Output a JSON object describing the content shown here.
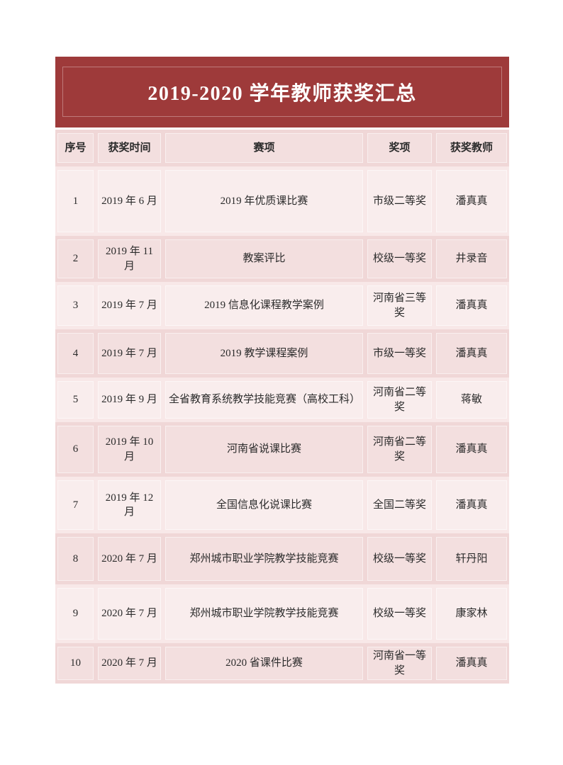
{
  "title": "2019-2020 学年教师获奖汇总",
  "columns": [
    {
      "key": "seq",
      "label": "序号"
    },
    {
      "key": "date",
      "label": "获奖时间"
    },
    {
      "key": "event",
      "label": "赛项"
    },
    {
      "key": "award",
      "label": "奖项"
    },
    {
      "key": "teacher",
      "label": "获奖教师"
    }
  ],
  "rows": [
    {
      "seq": "1",
      "date": "2019 年 6 月",
      "event": "2019 年优质课比赛",
      "award": "市级二等奖",
      "teacher": "潘真真"
    },
    {
      "seq": "2",
      "date": "2019 年 11 月",
      "event": "教案评比",
      "award": "校级一等奖",
      "teacher": "井录音"
    },
    {
      "seq": "3",
      "date": "2019 年 7 月",
      "event": "2019 信息化课程教学案例",
      "award": "河南省三等奖",
      "teacher": "潘真真"
    },
    {
      "seq": "4",
      "date": "2019 年 7 月",
      "event": "2019 教学课程案例",
      "award": "市级一等奖",
      "teacher": "潘真真"
    },
    {
      "seq": "5",
      "date": "2019 年 9 月",
      "event": "全省教育系统教学技能竞赛（高校工科）",
      "award": "河南省二等奖",
      "teacher": "蒋敏"
    },
    {
      "seq": "6",
      "date": "2019 年 10 月",
      "event": "河南省说课比赛",
      "award": "河南省二等奖",
      "teacher": "潘真真"
    },
    {
      "seq": "7",
      "date": "2019 年 12 月",
      "event": "全国信息化说课比赛",
      "award": "全国二等奖",
      "teacher": "潘真真"
    },
    {
      "seq": "8",
      "date": "2020 年 7 月",
      "event": "郑州城市职业学院教学技能竞赛",
      "award": "校级一等奖",
      "teacher": "轩丹阳"
    },
    {
      "seq": "9",
      "date": "2020 年 7 月",
      "event": "郑州城市职业学院教学技能竞赛",
      "award": "校级一等奖",
      "teacher": "康家林"
    },
    {
      "seq": "10",
      "date": "2020 年 7 月",
      "event": "2020 省课件比赛",
      "award": "河南省一等奖",
      "teacher": "潘真真"
    }
  ],
  "colors": {
    "banner_bg": "#9e3a3a",
    "banner_text": "#ffffff",
    "band_dark": "#f0d7d7",
    "band_light": "#f8e8e8",
    "text": "#2b2b2b"
  }
}
